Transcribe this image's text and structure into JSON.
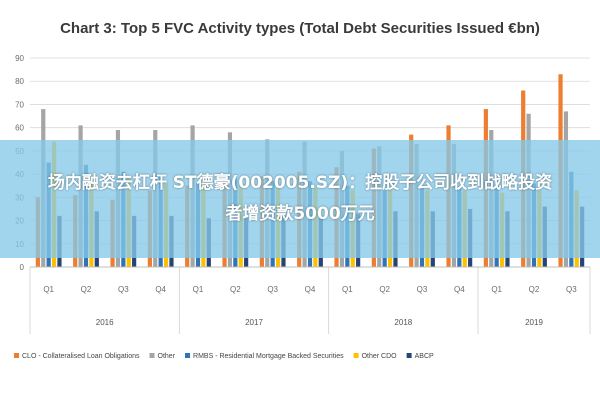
{
  "chart_data": {
    "type": "bar",
    "title": "Chart 3: Top 5 FVC Activity types (Total Debt Securities Issued €bn)",
    "categories": [
      "Q1",
      "Q2",
      "Q3",
      "Q4",
      "Q1",
      "Q2",
      "Q3",
      "Q4",
      "Q1",
      "Q2",
      "Q3",
      "Q4",
      "Q1",
      "Q2",
      "Q3"
    ],
    "groups": [
      {
        "label": "2016",
        "count": 4
      },
      {
        "label": "2017",
        "count": 4
      },
      {
        "label": "2018",
        "count": 4
      },
      {
        "label": "2019",
        "count": 3
      }
    ],
    "ylim": [
      0,
      90
    ],
    "yticks": [
      0,
      10,
      20,
      30,
      40,
      50,
      60,
      70,
      80,
      90
    ],
    "grid": true,
    "legend_position": "bottom",
    "series": [
      {
        "name": "CLO - Collateralised Loan Obligations",
        "color": "#ed7d31",
        "values": [
          30,
          31,
          29,
          33,
          35,
          37,
          39,
          41,
          43,
          51,
          57,
          61,
          68,
          76,
          83
        ]
      },
      {
        "name": "Other",
        "color": "#a5a5a5",
        "values": [
          68,
          61,
          59,
          59,
          61,
          58,
          55,
          54,
          50,
          52,
          53,
          53,
          59,
          66,
          67
        ]
      },
      {
        "name": "RMBS - Residential Mortgage Backed Securities",
        "color": "#2e75b6",
        "values": [
          45,
          44,
          41,
          40,
          36,
          38,
          37,
          37,
          35,
          33,
          34,
          34,
          35,
          36,
          41
        ]
      },
      {
        "name": "Other CDO",
        "color": "#ffc000",
        "values": [
          54,
          39,
          39,
          36,
          38,
          35,
          34,
          34,
          33,
          34,
          33,
          33,
          32,
          33,
          33
        ]
      },
      {
        "name": "ABCP",
        "color": "#264478",
        "values": [
          22,
          24,
          22,
          22,
          21,
          21,
          22,
          22,
          23,
          24,
          24,
          25,
          24,
          26,
          26
        ]
      }
    ]
  },
  "overlay": {
    "headline": "场内融资去杠杆 ST德豪(002005.SZ)：控股子公司收到战略投资者增资款5000万元"
  }
}
